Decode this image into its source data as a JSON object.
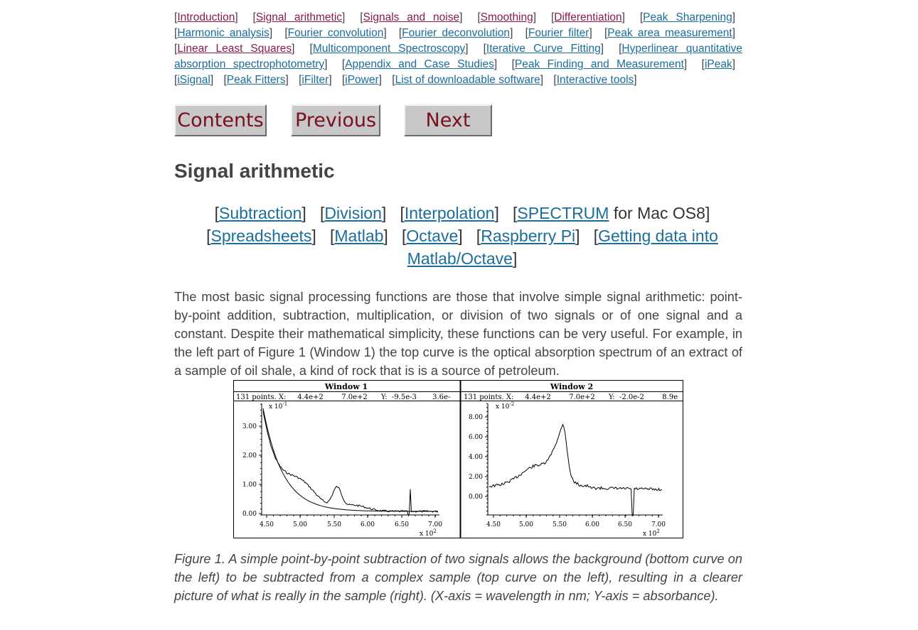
{
  "nav": {
    "links": [
      {
        "label": "Introduction",
        "visited": true
      },
      {
        "label": "Signal arithmetic",
        "visited": true
      },
      {
        "label": "Signals and noise",
        "visited": true
      },
      {
        "label": "Smoothing",
        "visited": true
      },
      {
        "label": "Differentiation",
        "visited": true
      },
      {
        "label": "Peak Sharpening",
        "visited": false
      },
      {
        "label": "Harmonic analysis",
        "visited": false
      },
      {
        "label": "Fourier convolution",
        "visited": false
      },
      {
        "label": "Fourier deconvolution",
        "visited": false
      },
      {
        "label": "Fourier filter",
        "visited": false
      },
      {
        "label": "Peak area measurement",
        "visited": false
      },
      {
        "label": "Linear Least Squares",
        "visited": true
      },
      {
        "label": "Multicomponent Spectroscopy",
        "visited": false
      },
      {
        "label": "Iterative Curve Fitting",
        "visited": false
      },
      {
        "label": "Hyperlinear quantitative absorption spectrophotometry",
        "visited": false
      },
      {
        "label": "Appendix and Case Studies",
        "visited": false
      },
      {
        "label": "Peak Finding and Measurement",
        "visited": false
      },
      {
        "label": "iPeak",
        "visited": false
      },
      {
        "label": "iSignal",
        "visited": false
      },
      {
        "label": "Peak Fitters",
        "visited": false
      },
      {
        "label": "iFilter",
        "visited": false
      },
      {
        "label": "iPower",
        "visited": false
      },
      {
        "label": "List of downloadable software",
        "visited": false
      },
      {
        "label": "Interactive tools",
        "visited": false
      }
    ]
  },
  "buttons": {
    "contents": "Contents",
    "previous": "Previous",
    "next": "Next"
  },
  "page_title": "Signal arithmetic",
  "sublinks": {
    "subtraction": "Subtraction",
    "division": "Division",
    "interpolation": "Interpolation",
    "spectrum": "SPECTRUM",
    "spectrum_suffix": " for Mac OS8",
    "spreadsheets": "Spreadsheets",
    "matlab": "Matlab",
    "octave": "Octave",
    "raspberry": "Raspberry Pi",
    "getting_data": "Getting data into Matlab/Octave"
  },
  "paragraph": "The most basic signal processing functions are those that involve simple signal arithmetic: point-by-point addition, subtraction, multiplication, or division of two signals or of one signal and a constant. Despite their mathematical simplicity, these functions can be very useful. For example, in the left part of Figure 1 (Window 1) the top curve is the optical absorption spectrum of an extract of a sample of oil shale, a kind of rock that is is a source of petroleum.",
  "figure": {
    "window1": {
      "title": "Window 1",
      "status": "131 points. X:     4.4e+2        7.0e+2      Y:  -9.5e-3       3.6e-",
      "y_exp": "x 10",
      "y_exp_sup": "-1",
      "x_exp": "x 10",
      "x_exp_sup": "2",
      "yticks": [
        "3.00",
        "2.00",
        "1.00",
        "0.00"
      ],
      "xticks": [
        "4.50",
        "5.00",
        "5.50",
        "6.00",
        "6.50",
        "7.00"
      ]
    },
    "window2": {
      "title": "Window 2",
      "status": "131 points. X:     4.4e+2        7.0e+2      Y:  -2.0e-2        8.9e",
      "y_exp": "x 10",
      "y_exp_sup": "-2",
      "x_exp": "x 10",
      "x_exp_sup": "2",
      "yticks": [
        "8.00",
        "6.00",
        "4.00",
        "2.00",
        "0.00"
      ],
      "xticks": [
        "4.50",
        "5.00",
        "5.50",
        "6.00",
        "6.50",
        "7.00"
      ]
    }
  },
  "caption": "Figure 1. A simple point-by-point subtraction of two signals allows the background (bottom curve on the left) to be subtracted from a complex sample (top curve on the left), resulting in a clearer picture of what is really in the sample (right). (X-axis = wavelength in nm; Y-axis = absorbance)."
}
